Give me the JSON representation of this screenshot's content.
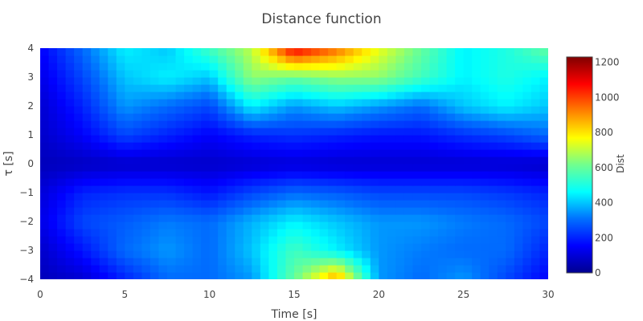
{
  "chart_data": {
    "type": "heatmap",
    "title": "Distance function",
    "xlabel": "Time [s]",
    "ylabel": "τ [s]",
    "xlim": [
      0,
      30
    ],
    "ylim": [
      -4,
      4
    ],
    "x_ticks": [
      "0",
      "5",
      "10",
      "15",
      "20",
      "25",
      "30"
    ],
    "y_ticks": [
      "−4",
      "−3",
      "−2",
      "−1",
      "0",
      "1",
      "2",
      "3",
      "4"
    ],
    "x_tick_values": [
      0,
      5,
      10,
      15,
      20,
      25,
      30
    ],
    "y_tick_values": [
      -4,
      -3,
      -2,
      -1,
      0,
      1,
      2,
      3,
      4
    ],
    "colorbar": {
      "title": "Dist",
      "range": [
        0,
        1230
      ],
      "ticks": [
        "0",
        "200",
        "400",
        "600",
        "800",
        "1000",
        "1200"
      ],
      "tick_values": [
        0,
        200,
        400,
        600,
        800,
        1000,
        1200
      ],
      "colorscale": [
        "#00008f",
        "#0000ff",
        "#0070ff",
        "#00ffff",
        "#70ff8f",
        "#ffff00",
        "#ff8000",
        "#ff0000",
        "#800000"
      ]
    },
    "z_grid": {
      "x_step": 2.5,
      "y_step": 1,
      "x": [
        0,
        2.5,
        5,
        7.5,
        10,
        12.5,
        15,
        17.5,
        20,
        22.5,
        25,
        27.5,
        30
      ],
      "y": [
        -4,
        -3,
        -2,
        -1,
        0,
        1,
        2,
        3,
        4
      ],
      "z": [
        [
          60,
          90,
          200,
          300,
          300,
          350,
          600,
          900,
          350,
          300,
          350,
          250,
          150
        ],
        [
          80,
          180,
          300,
          350,
          300,
          400,
          550,
          450,
          350,
          320,
          300,
          300,
          200
        ],
        [
          120,
          250,
          280,
          320,
          300,
          380,
          450,
          400,
          350,
          350,
          320,
          300,
          250
        ],
        [
          100,
          200,
          220,
          220,
          180,
          250,
          300,
          280,
          250,
          250,
          250,
          230,
          200
        ],
        [
          60,
          70,
          80,
          80,
          80,
          90,
          100,
          90,
          90,
          90,
          90,
          90,
          80
        ],
        [
          80,
          150,
          250,
          200,
          150,
          200,
          220,
          200,
          180,
          180,
          220,
          250,
          300
        ],
        [
          90,
          200,
          350,
          300,
          250,
          450,
          350,
          400,
          350,
          300,
          400,
          450,
          400
        ],
        [
          120,
          250,
          400,
          450,
          400,
          650,
          600,
          650,
          650,
          550,
          450,
          500,
          450
        ],
        [
          150,
          300,
          450,
          400,
          550,
          700,
          1100,
          950,
          750,
          600,
          450,
          500,
          600
        ]
      ]
    }
  }
}
